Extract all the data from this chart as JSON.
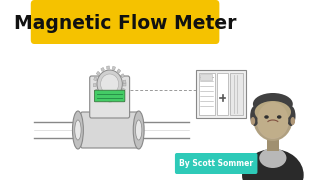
{
  "bg_color": "#ffffff",
  "title_text": "Magnetic Flow Meter",
  "title_bg": "#f5c200",
  "title_fg": "#111111",
  "title_fontsize": 13.5,
  "byline_text": "By Scott Sommer",
  "byline_bg": "#2ecab8",
  "byline_fg": "#ffffff",
  "byline_fontsize": 5.5,
  "pipe_color": "#aaaaaa",
  "pipe_edge": "#888888",
  "flange_color": "#c0c0c0",
  "flange_edge": "#888888",
  "body_color": "#d8d8d8",
  "body_edge": "#888888",
  "head_color": "#e2e2e2",
  "head_edge": "#888888",
  "display_color": "#44cc66",
  "plc_bg": "#f0f0f0",
  "plc_edge": "#888888",
  "dashed_color": "#999999",
  "person_skin": "#c0b090",
  "person_hair": "#404040",
  "person_suit": "#303030",
  "person_shirt": "#d0d0d0"
}
